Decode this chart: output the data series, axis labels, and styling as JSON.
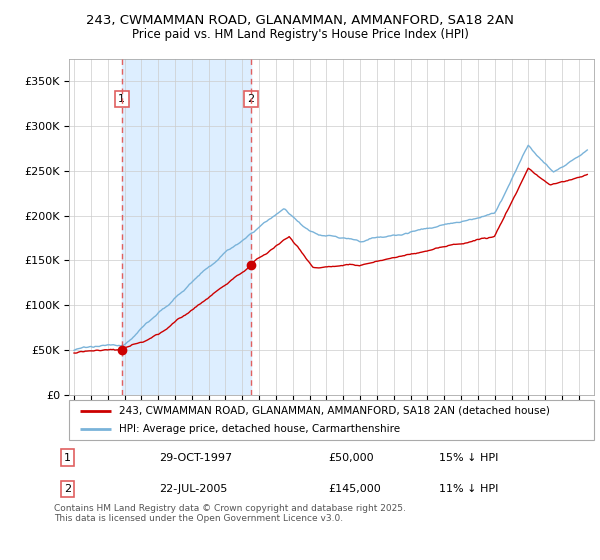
{
  "title_line1": "243, CWMAMMAN ROAD, GLANAMMAN, AMMANFORD, SA18 2AN",
  "title_line2": "Price paid vs. HM Land Registry's House Price Index (HPI)",
  "legend_label1": "243, CWMAMMAN ROAD, GLANAMMAN, AMMANFORD, SA18 2AN (detached house)",
  "legend_label2": "HPI: Average price, detached house, Carmarthenshire",
  "transaction1_date": "29-OCT-1997",
  "transaction1_price": "£50,000",
  "transaction1_hpi": "15% ↓ HPI",
  "transaction2_date": "22-JUL-2005",
  "transaction2_price": "£145,000",
  "transaction2_hpi": "11% ↓ HPI",
  "footer": "Contains HM Land Registry data © Crown copyright and database right 2025.\nThis data is licensed under the Open Government Licence v3.0.",
  "ylim": [
    0,
    375000
  ],
  "yticks": [
    0,
    50000,
    100000,
    150000,
    200000,
    250000,
    300000,
    350000
  ],
  "color_property": "#cc0000",
  "color_hpi": "#7ab3d9",
  "color_vline": "#e06060",
  "color_shade": "#ddeeff",
  "bg_color": "#ffffff",
  "grid_color": "#cccccc",
  "transaction1_year": 1997.83,
  "transaction1_value": 50000,
  "transaction2_year": 2005.5,
  "transaction2_value": 145000,
  "xlim_left": 1994.7,
  "xlim_right": 2025.9
}
